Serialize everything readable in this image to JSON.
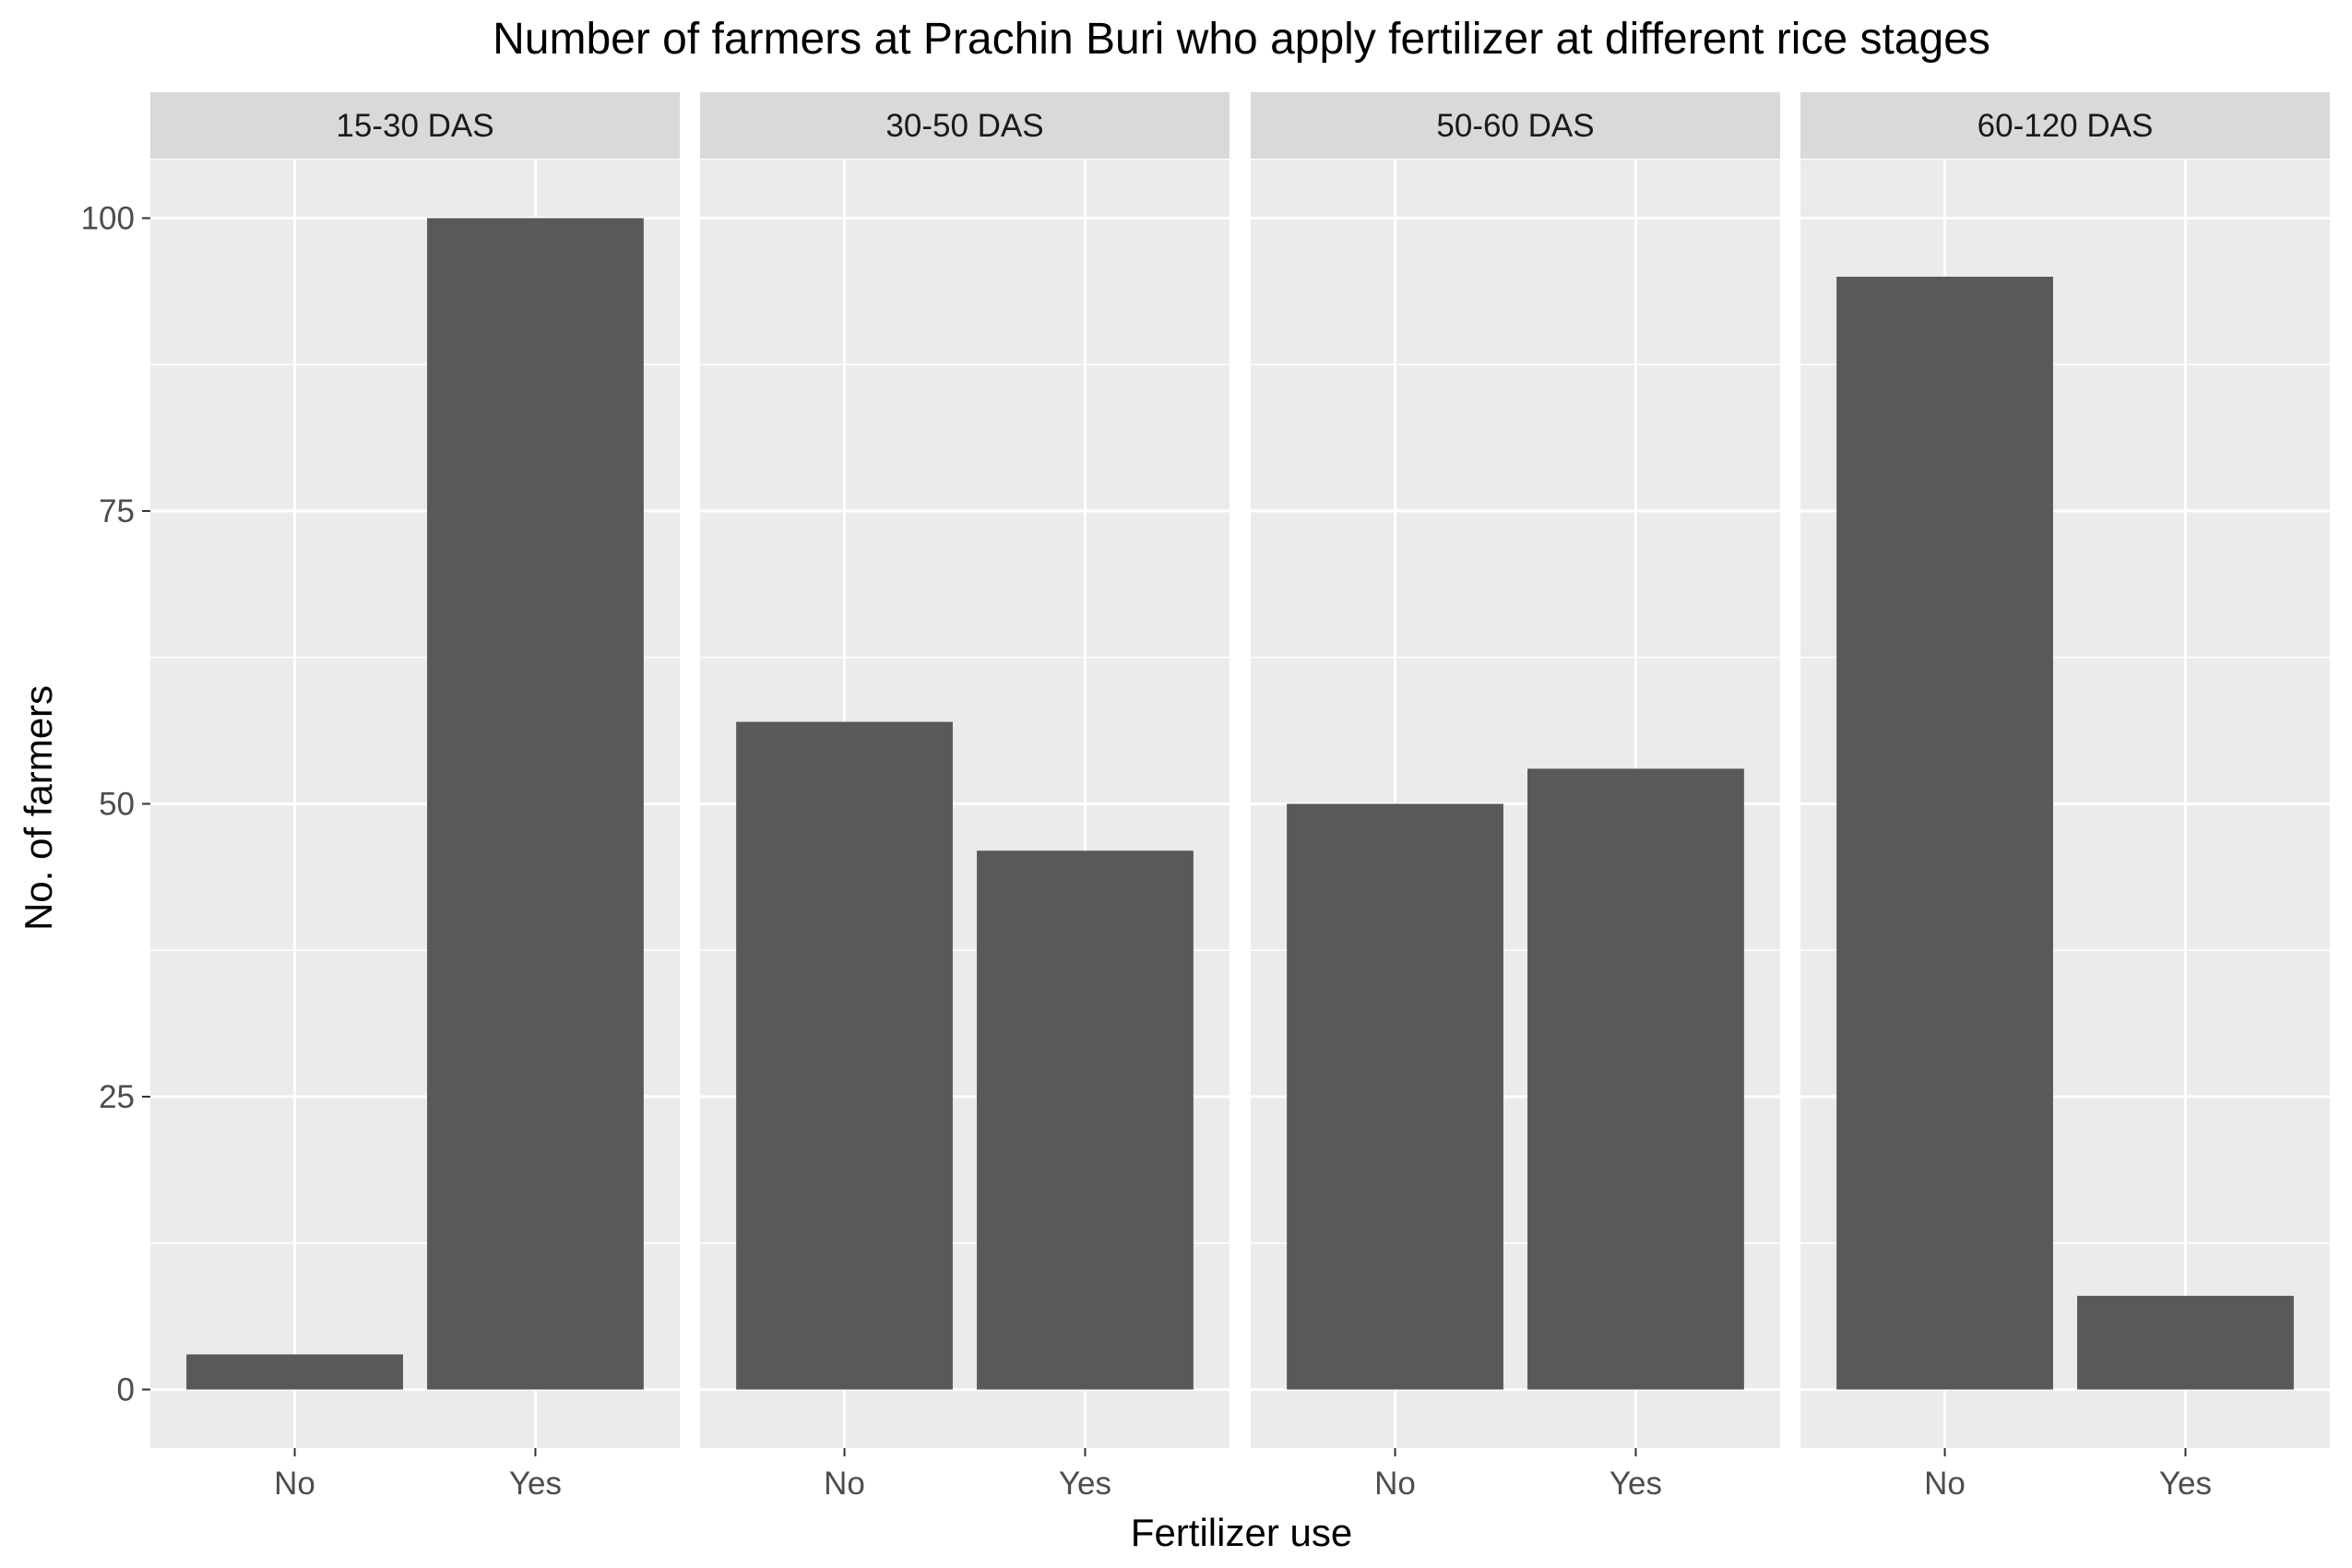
{
  "chart_data": {
    "type": "bar",
    "title": "Number of farmers at Prachin Buri who apply fertilizer at different rice stages",
    "xlabel": "Fertilizer use",
    "ylabel": "No. of farmers",
    "ylim": [
      -5,
      105
    ],
    "yticks": [
      0,
      25,
      50,
      75,
      100
    ],
    "ytick_labels": [
      "0",
      "25",
      "50",
      "75",
      "100"
    ],
    "categories": [
      "No",
      "Yes"
    ],
    "grid": true,
    "facets": [
      {
        "label": "15-30 DAS",
        "values": [
          3,
          100
        ]
      },
      {
        "label": "30-50 DAS",
        "values": [
          57,
          46
        ]
      },
      {
        "label": "50-60 DAS",
        "values": [
          50,
          53
        ]
      },
      {
        "label": "60-120 DAS",
        "values": [
          95,
          8
        ]
      }
    ],
    "colors": {
      "bar": "#595959",
      "panel": "#ebebeb",
      "strip": "#d9d9d9",
      "grid": "#ffffff"
    }
  }
}
